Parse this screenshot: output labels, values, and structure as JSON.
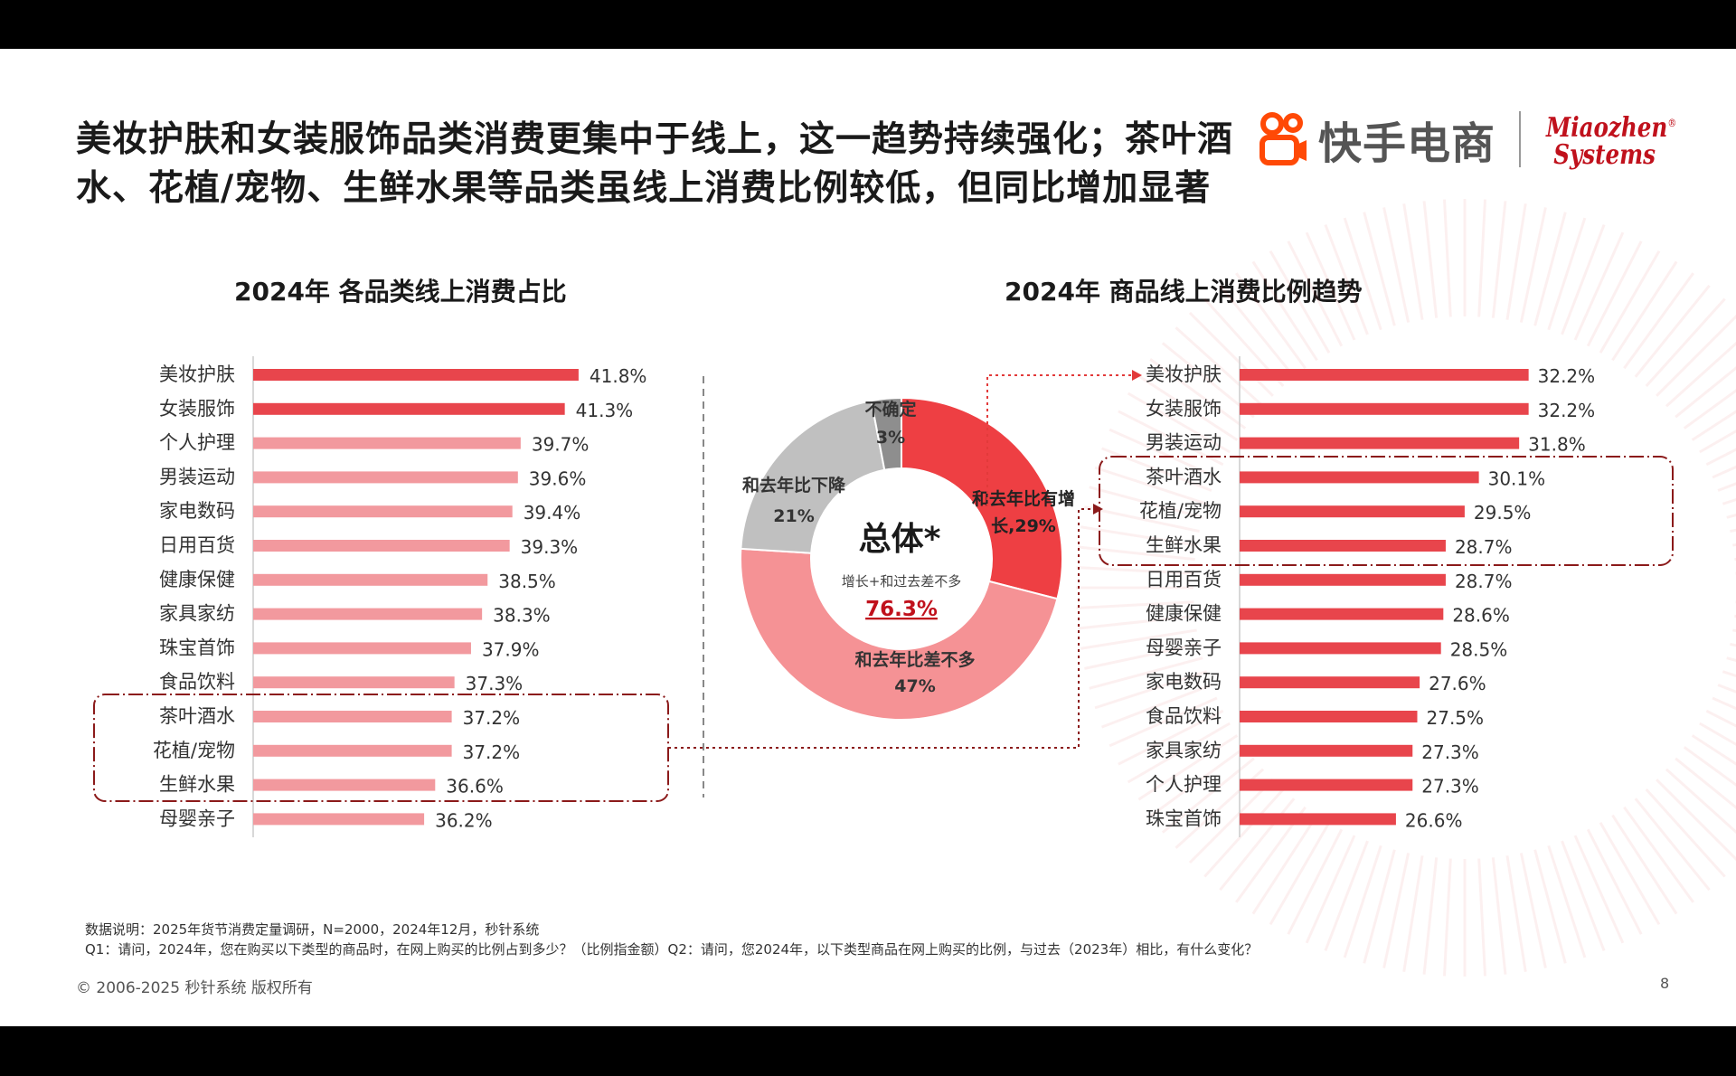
{
  "headline": "美妆护肤和女装服饰品类消费更集中于线上，这一趋势持续强化；茶叶酒水、花植/宠物、生鲜水果等品类虽线上消费比例较低，但同比增加显著",
  "logo": {
    "kuaishou_text": "快手电商",
    "brand_line1": "Miaozhen",
    "brand_line2": "Systems"
  },
  "colors": {
    "bar_dark": "#e8454c",
    "bar_light": "#f2999e",
    "donut_increase": "#ee3f43",
    "donut_same": "#f59295",
    "donut_decrease": "#c0c0c0",
    "donut_uncertain": "#8e8e8e",
    "highlight_box": "#8b1a1a",
    "value_red": "#c0111c"
  },
  "chart_data": [
    {
      "type": "bar",
      "orientation": "horizontal",
      "title": "2024年 各品类线上消费占比",
      "categories": [
        "美妆护肤",
        "女装服饰",
        "个人护理",
        "男装运动",
        "家电数码",
        "日用百货",
        "健康保健",
        "家具家纺",
        "珠宝首饰",
        "食品饮料",
        "茶叶酒水",
        "花植/宠物",
        "生鲜水果",
        "母婴亲子"
      ],
      "values": [
        41.8,
        41.3,
        39.7,
        39.6,
        39.4,
        39.3,
        38.5,
        38.3,
        37.9,
        37.3,
        37.2,
        37.2,
        36.6,
        36.2
      ],
      "value_labels": [
        "41.8%",
        "41.3%",
        "39.7%",
        "39.6%",
        "39.4%",
        "39.3%",
        "38.5%",
        "38.3%",
        "37.9%",
        "37.3%",
        "37.2%",
        "37.2%",
        "36.6%",
        "36.2%"
      ],
      "highlighted": [
        "茶叶酒水",
        "花植/宠物",
        "生鲜水果"
      ]
    },
    {
      "type": "pie",
      "center_title": "总体*",
      "center_subtitle": "增长+和过去差不多",
      "center_value": "76.3%",
      "slices": [
        {
          "label_line1": "和去年比有增",
          "label_line2": "长,29%",
          "value": 29
        },
        {
          "label_line1": "和去年比差不多",
          "label_line2": "47%",
          "value": 47
        },
        {
          "label_line1": "和去年比下降",
          "label_line2": "21%",
          "value": 21
        },
        {
          "label_line1": "不确定",
          "label_line2": "3%",
          "value": 3
        }
      ]
    },
    {
      "type": "bar",
      "orientation": "horizontal",
      "title": "2024年 商品线上消费比例趋势",
      "categories": [
        "美妆护肤",
        "女装服饰",
        "男装运动",
        "茶叶酒水",
        "花植/宠物",
        "生鲜水果",
        "日用百货",
        "健康保健",
        "母婴亲子",
        "家电数码",
        "食品饮料",
        "家具家纺",
        "个人护理",
        "珠宝首饰"
      ],
      "values": [
        32.2,
        32.2,
        31.8,
        30.1,
        29.5,
        28.7,
        28.7,
        28.6,
        28.5,
        27.6,
        27.5,
        27.3,
        27.3,
        26.6
      ],
      "value_labels": [
        "32.2%",
        "32.2%",
        "31.8%",
        "30.1%",
        "29.5%",
        "28.7%",
        "28.7%",
        "28.6%",
        "28.5%",
        "27.6%",
        "27.5%",
        "27.3%",
        "27.3%",
        "26.6%"
      ],
      "highlighted": [
        "茶叶酒水",
        "花植/宠物",
        "生鲜水果"
      ]
    }
  ],
  "footnotes": {
    "line1": "数据说明：2025年货节消费定量调研，N=2000，2024年12月，秒针系统",
    "line2": "Q1：请问，2024年，您在购买以下类型的商品时，在网上购买的比例占到多少？（比例指金额）Q2：请问，您2024年，以下类型商品在网上购买的比例，与过去（2023年）相比，有什么变化？"
  },
  "copyright": "© 2006-2025 秒针系统 版权所有",
  "page_number": "8"
}
